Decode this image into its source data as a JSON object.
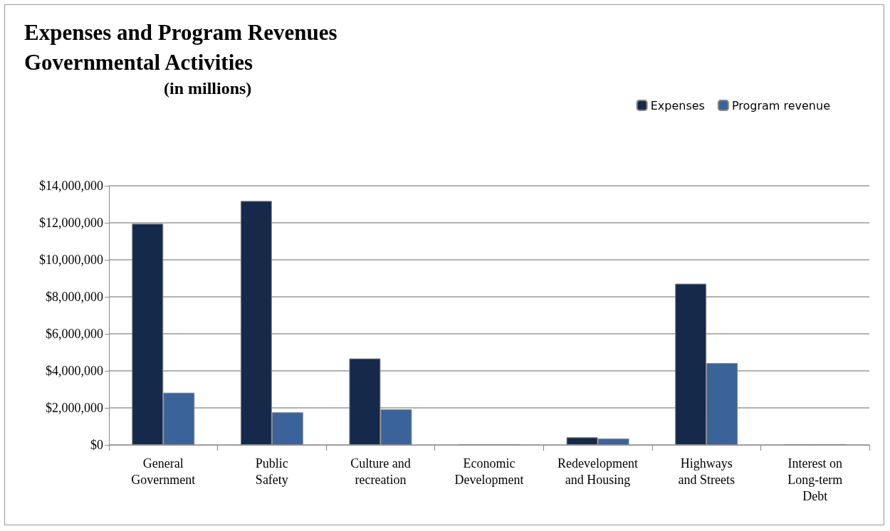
{
  "chart_data": {
    "type": "bar",
    "title": "Expenses and Program Revenues\nGovernmental Activities",
    "subtitle": "(in millions)",
    "categories": [
      "General\nGovernment",
      "Public\nSafety",
      "Culture and\nrecreation",
      "Economic\nDevelopment",
      "Redevelopment\nand Housing",
      "Highways\nand Streets",
      "Interest on\nLong-term\nDebt"
    ],
    "series": [
      {
        "name": "Expenses",
        "color": "#15294a",
        "values": [
          11950000,
          13180000,
          4670000,
          0,
          410000,
          8710000,
          0
        ]
      },
      {
        "name": "Program revenue",
        "color": "#3a6399",
        "values": [
          2820000,
          1760000,
          1920000,
          0,
          340000,
          4420000,
          0
        ]
      }
    ],
    "ylim": [
      0,
      14000000
    ],
    "yticks": [
      {
        "value": 0,
        "label": "$0"
      },
      {
        "value": 2000000,
        "label": "$2,000,000"
      },
      {
        "value": 4000000,
        "label": "$4,000,000"
      },
      {
        "value": 6000000,
        "label": "$6,000,000"
      },
      {
        "value": 8000000,
        "label": "$8,000,000"
      },
      {
        "value": 10000000,
        "label": "$10,000,000"
      },
      {
        "value": 12000000,
        "label": "$12,000,000"
      },
      {
        "value": 14000000,
        "label": "$14,000,000"
      }
    ],
    "grid": "y",
    "legend": "top right"
  }
}
